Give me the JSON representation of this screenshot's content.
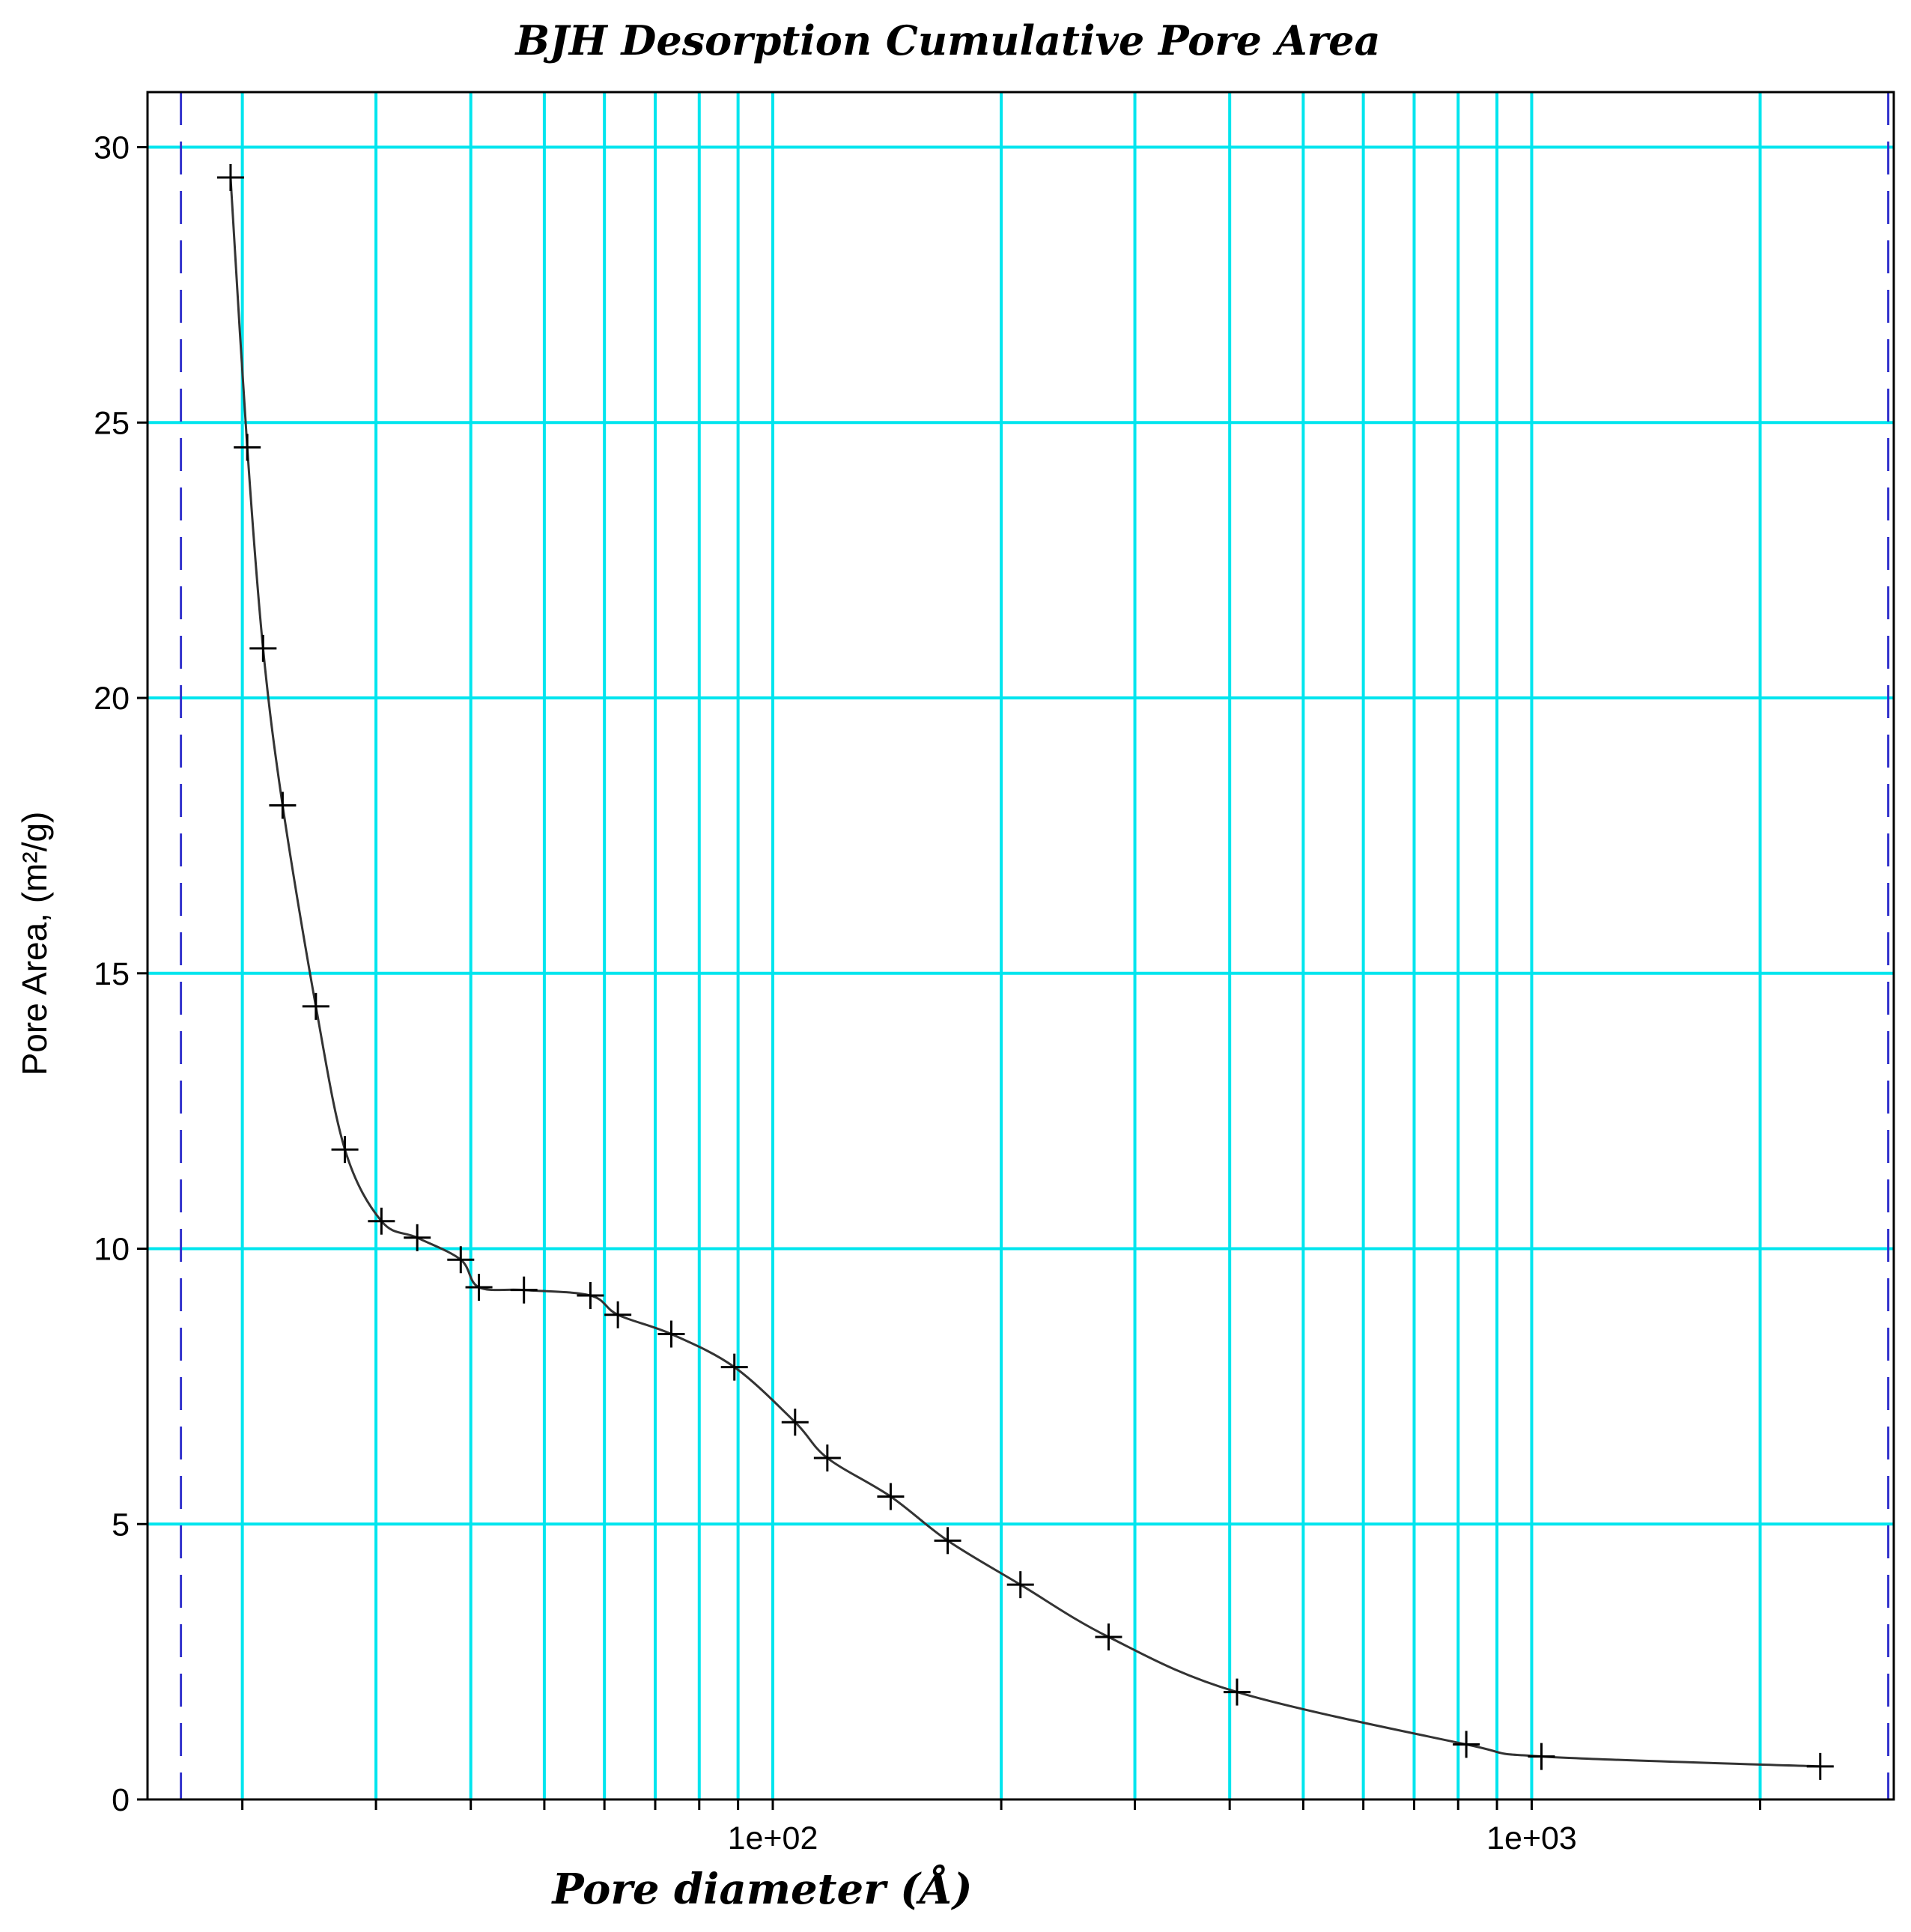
{
  "chart_data": {
    "type": "scatter",
    "title": "BJH Desorption Cumulative Pore Area",
    "xlabel": "Pore diameter (Å)",
    "ylabel": "Pore Area, (m²/g)",
    "x_scale": "log",
    "xlim": [
      15,
      3000
    ],
    "ylim": [
      0,
      31
    ],
    "x_ticks": [
      100,
      1000
    ],
    "x_tick_labels": [
      "1e+02",
      "1e+03"
    ],
    "y_ticks": [
      0,
      5,
      10,
      15,
      20,
      25,
      30
    ],
    "y_tick_labels": [
      "0",
      "5",
      "10",
      "15",
      "20",
      "25",
      "30"
    ],
    "grid": true,
    "series": [
      {
        "marker": "plus",
        "line": "smooth",
        "x": [
          19.3,
          20.3,
          21.3,
          22.6,
          25.0,
          27.3,
          30.5,
          34.0,
          38.8,
          41.0,
          47.0,
          57.5,
          62.5,
          73.5,
          89.0,
          107.0,
          118.0,
          143.0,
          170.0,
          212.0,
          277.0,
          409.0,
          820.0,
          1030.0,
          2400.0
        ],
        "y": [
          29.45,
          24.55,
          20.9,
          18.05,
          14.4,
          11.8,
          10.5,
          10.2,
          9.8,
          9.3,
          9.25,
          9.15,
          8.8,
          8.45,
          7.85,
          6.85,
          6.2,
          5.5,
          4.7,
          3.9,
          2.95,
          1.95,
          1.0,
          0.78,
          0.6
        ]
      }
    ],
    "vertical_markers": [
      {
        "x": 16.6,
        "style": "dashed",
        "color": "#3333cc"
      },
      {
        "x": 2950,
        "style": "dashed",
        "color": "#3333cc"
      }
    ]
  },
  "colors": {
    "grid": "#00e5ee",
    "axis": "#000000",
    "curve": "#333333",
    "marker": "#000000",
    "limit_line": "#3333cc"
  }
}
